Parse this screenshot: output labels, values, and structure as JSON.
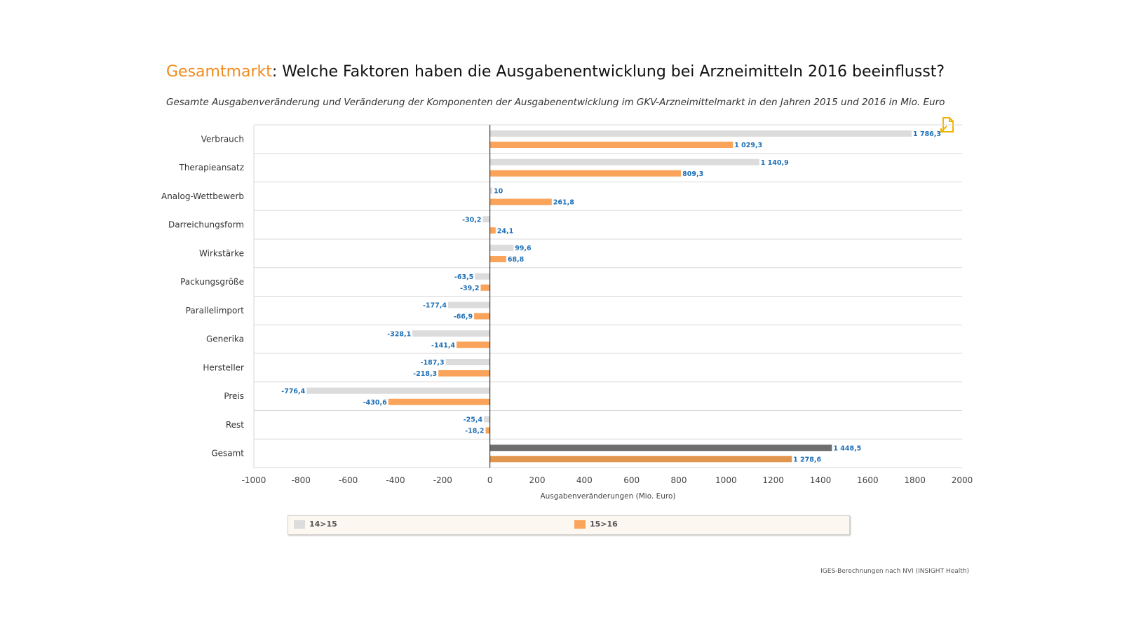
{
  "header": {
    "title_highlight": "Gesamtmarkt",
    "title_rest": ": Welche Faktoren haben die Ausgabenentwicklung bei Arzneimitteln 2016 beeinflusst?",
    "subtitle": "Gesamte Ausgabenveränderung und Veränderung der Komponenten der Ausgabenentwicklung im GKV-Arzneimittelmarkt in den Jahren 2015 und 2016 in Mio. Euro"
  },
  "colors": {
    "highlight": "#f08a1c",
    "series1": "#dcdcdc",
    "series2": "#f9a45a",
    "series1_total": "#6e6e6e",
    "series2_total": "#e2954e",
    "label": "#1f6fb6",
    "grid": "#d9d9d9"
  },
  "chart_data": {
    "type": "bar",
    "orientation": "horizontal",
    "categories": [
      "Verbrauch",
      "Therapieansatz",
      "Analog-Wettbewerb",
      "Darreichungsform",
      "Wirkstärke",
      "Packungsgröße",
      "Parallelimport",
      "Generika",
      "Hersteller",
      "Preis",
      "Rest",
      "Gesamt"
    ],
    "series": [
      {
        "name": "14>15",
        "values": [
          1786.3,
          1140.9,
          10,
          -30.2,
          99.6,
          -63.5,
          -177.4,
          -328.1,
          -187.3,
          -776.4,
          -25.4,
          1448.5
        ],
        "labels": [
          "1 786,3",
          "1 140,9",
          "10",
          "-30,2",
          "99,6",
          "-63,5",
          "-177,4",
          "-328,1",
          "-187,3",
          "-776,4",
          "-25,4",
          "1 448,5"
        ]
      },
      {
        "name": "15>16",
        "values": [
          1029.3,
          809.3,
          261.8,
          24.1,
          68.8,
          -39.2,
          -66.9,
          -141.4,
          -218.3,
          -430.6,
          -18.2,
          1278.6
        ],
        "labels": [
          "1 029,3",
          "809,3",
          "261,8",
          "24,1",
          "68,8",
          "-39,2",
          "-66,9",
          "-141,4",
          "-218,3",
          "-430,6",
          "-18,2",
          "1 278,6"
        ]
      }
    ],
    "xlim": [
      -1000,
      2000
    ],
    "xticks": [
      -1000,
      -800,
      -600,
      -400,
      -200,
      0,
      200,
      400,
      600,
      800,
      1000,
      1200,
      1400,
      1600,
      1800,
      2000
    ],
    "xtick_labels": [
      "-1000",
      "-800",
      "-600",
      "-400",
      "-200",
      "0",
      "200",
      "400",
      "600",
      "800",
      "1000",
      "1200",
      "1400",
      "1600",
      "1800",
      "2000"
    ],
    "xlabel": "Ausgabenveränderungen (Mio. Euro)",
    "ylabel": "",
    "legend_position": "bottom"
  },
  "legend": {
    "items": [
      {
        "label": "14>15"
      },
      {
        "label": "15>16"
      }
    ]
  },
  "footer": {
    "source": "IGES-Berechnungen nach NVI (INSIGHT Health)"
  },
  "icons": {
    "export": "export-document-icon"
  }
}
